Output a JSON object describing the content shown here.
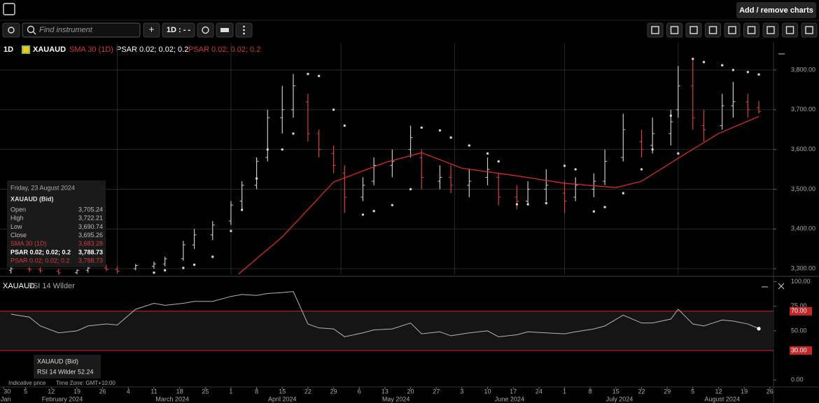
{
  "toolbar": {
    "search_placeholder": "Find instrument",
    "interval": "1D : - -",
    "add_remove": "Add / remove charts"
  },
  "legend": {
    "interval": "1D",
    "symbol": "XAUAUD",
    "psar_red": "PSAR 0.02; 0.02; 0.2"
  },
  "chart_data": [
    {
      "type": "ohlc",
      "x": [
        "2024-02-01",
        "2024-02-06",
        "2024-02-09",
        "2024-02-14",
        "2024-02-19",
        "2024-02-22",
        "2024-02-27",
        "2024-03-01",
        "2024-03-06",
        "2024-03-11",
        "2024-03-14",
        "2024-03-19",
        "2024-03-22",
        "2024-03-27",
        "2024-04-01",
        "2024-04-04",
        "2024-04-08",
        "2024-04-11",
        "2024-04-15",
        "2024-04-18",
        "2024-04-22",
        "2024-04-25",
        "2024-04-29",
        "2024-05-02",
        "2024-05-07",
        "2024-05-10",
        "2024-05-15",
        "2024-05-20",
        "2024-05-23",
        "2024-05-28",
        "2024-05-31",
        "2024-06-05",
        "2024-06-10",
        "2024-06-13",
        "2024-06-18",
        "2024-06-21",
        "2024-06-26",
        "2024-07-01",
        "2024-07-04",
        "2024-07-09",
        "2024-07-12",
        "2024-07-17",
        "2024-07-22",
        "2024-07-25",
        "2024-07-30",
        "2024-08-01",
        "2024-08-05",
        "2024-08-08",
        "2024-08-13",
        "2024-08-16",
        "2024-08-20",
        "2024-08-23"
      ],
      "open": [
        3296,
        3300,
        3298,
        3294,
        3290,
        3296,
        3302,
        3298,
        3300,
        3306,
        3312,
        3325,
        3360,
        3385,
        3420,
        3470,
        3510,
        3580,
        3680,
        3700,
        3720,
        3640,
        3590,
        3540,
        3480,
        3520,
        3560,
        3600,
        3580,
        3520,
        3530,
        3510,
        3530,
        3530,
        3480,
        3470,
        3500,
        3490,
        3480,
        3500,
        3520,
        3580,
        3620,
        3610,
        3640,
        3700,
        3760,
        3660,
        3660,
        3710,
        3720,
        3705.24
      ],
      "high": [
        3305,
        3308,
        3304,
        3300,
        3298,
        3306,
        3310,
        3306,
        3312,
        3318,
        3330,
        3370,
        3400,
        3420,
        3470,
        3520,
        3580,
        3700,
        3760,
        3790,
        3740,
        3650,
        3610,
        3560,
        3530,
        3580,
        3600,
        3660,
        3600,
        3560,
        3560,
        3550,
        3580,
        3540,
        3510,
        3520,
        3550,
        3520,
        3530,
        3540,
        3600,
        3690,
        3650,
        3680,
        3700,
        3810,
        3830,
        3700,
        3740,
        3770,
        3740,
        3722.21
      ],
      "low": [
        3288,
        3292,
        3290,
        3284,
        3286,
        3290,
        3294,
        3288,
        3296,
        3300,
        3306,
        3320,
        3350,
        3372,
        3410,
        3450,
        3500,
        3570,
        3640,
        3680,
        3620,
        3580,
        3540,
        3440,
        3470,
        3510,
        3530,
        3580,
        3500,
        3500,
        3490,
        3480,
        3510,
        3460,
        3450,
        3460,
        3470,
        3440,
        3470,
        3480,
        3510,
        3570,
        3580,
        3590,
        3610,
        3680,
        3650,
        3620,
        3650,
        3680,
        3680,
        3690.74
      ],
      "close": [
        3300,
        3298,
        3295,
        3290,
        3296,
        3302,
        3298,
        3294,
        3308,
        3312,
        3325,
        3360,
        3385,
        3410,
        3460,
        3510,
        3570,
        3680,
        3700,
        3760,
        3640,
        3600,
        3560,
        3480,
        3510,
        3560,
        3570,
        3630,
        3530,
        3530,
        3510,
        3520,
        3550,
        3480,
        3470,
        3500,
        3510,
        3470,
        3510,
        3520,
        3570,
        3650,
        3600,
        3640,
        3670,
        3760,
        3680,
        3650,
        3710,
        3720,
        3700,
        3695.26
      ],
      "up_color": "#c8c8c8",
      "down_color": "#d9413c",
      "overlays": [
        {
          "name": "SMA 30 (1D)",
          "type": "line",
          "color": "#d42a2a",
          "x": [
            "2024-04-03",
            "2024-04-15",
            "2024-04-29",
            "2024-05-13",
            "2024-05-23",
            "2024-06-03",
            "2024-06-17",
            "2024-07-01",
            "2024-07-15",
            "2024-07-22",
            "2024-08-01",
            "2024-08-12",
            "2024-08-23"
          ],
          "values": [
            3286,
            3380,
            3518,
            3567,
            3592,
            3553,
            3535,
            3515,
            3504,
            3520,
            3578,
            3640,
            3683.28
          ]
        },
        {
          "name": "PSAR 0.02; 0.02; 0.2",
          "type": "dots",
          "color": "#e9c9c9",
          "values": [
            null,
            null,
            null,
            null,
            null,
            null,
            null,
            null,
            null,
            3290,
            3296,
            3302,
            3310,
            3330,
            3395,
            3448,
            3527,
            3600,
            3600,
            3640,
            3790,
            3785,
            3700,
            3660,
            3436,
            3445,
            3460,
            3500,
            3655,
            3648,
            3630,
            3610,
            3590,
            3570,
            3462,
            3462,
            3465,
            3559,
            3550,
            3444,
            3455,
            3490,
            3550,
            3600,
            3685,
            3590,
            3828,
            3820,
            3812,
            3800,
            3795,
            3788.73
          ]
        }
      ],
      "xlim": [
        "2024-01-29",
        "2024-08-27"
      ],
      "ylim": [
        3286,
        3867
      ],
      "yticks": [
        {
          "value": 3300,
          "label": "3,300.00"
        },
        {
          "value": 3400,
          "label": "3,400.00"
        },
        {
          "value": 3500,
          "label": "3,500.00"
        },
        {
          "value": 3600,
          "label": "3,600.00"
        },
        {
          "value": 3700,
          "label": "3,700.00"
        },
        {
          "value": 3800,
          "label": "3,800.00"
        }
      ],
      "xgrid": [
        "2024-03-01",
        "2024-04-01",
        "2024-05-01",
        "2024-06-01",
        "2024-07-01",
        "2024-08-01"
      ],
      "grid": true
    },
    {
      "type": "line",
      "symbol": "XAUAUD",
      "title": "RSI 14 Wilder",
      "color": "#b4b4b4",
      "x": [
        "2024-02-01",
        "2024-02-06",
        "2024-02-09",
        "2024-02-14",
        "2024-02-19",
        "2024-02-22",
        "2024-02-27",
        "2024-03-01",
        "2024-03-06",
        "2024-03-11",
        "2024-03-14",
        "2024-03-19",
        "2024-03-22",
        "2024-03-27",
        "2024-04-01",
        "2024-04-04",
        "2024-04-08",
        "2024-04-11",
        "2024-04-15",
        "2024-04-18",
        "2024-04-22",
        "2024-04-25",
        "2024-04-29",
        "2024-05-02",
        "2024-05-07",
        "2024-05-10",
        "2024-05-15",
        "2024-05-20",
        "2024-05-23",
        "2024-05-28",
        "2024-05-31",
        "2024-06-05",
        "2024-06-10",
        "2024-06-13",
        "2024-06-18",
        "2024-06-21",
        "2024-06-26",
        "2024-07-01",
        "2024-07-04",
        "2024-07-09",
        "2024-07-12",
        "2024-07-17",
        "2024-07-22",
        "2024-07-25",
        "2024-07-30",
        "2024-08-01",
        "2024-08-05",
        "2024-08-08",
        "2024-08-13",
        "2024-08-16",
        "2024-08-20",
        "2024-08-23"
      ],
      "values": [
        67,
        64,
        55,
        48,
        50,
        55,
        57,
        56,
        72,
        78,
        76,
        78,
        80,
        80,
        85,
        87,
        86,
        88,
        89,
        90,
        57,
        53,
        52,
        44,
        48,
        51,
        52,
        58,
        47,
        49,
        45,
        48,
        50,
        44,
        46,
        49,
        48,
        47,
        49,
        52,
        55,
        66,
        58,
        58,
        62,
        72,
        57,
        55,
        61,
        60,
        57,
        52.24
      ],
      "xlim": [
        "2024-01-29",
        "2024-08-27"
      ],
      "ylim": [
        -7,
        104
      ],
      "yticks": [
        {
          "value": 0,
          "label": "0.00"
        },
        {
          "value": 50,
          "label": "50.00"
        },
        {
          "value": 75,
          "label": "75.00"
        },
        {
          "value": 100,
          "label": "100.00"
        }
      ],
      "levels": [
        {
          "value": 70,
          "label": "70.00"
        },
        {
          "value": 30,
          "label": "30.00"
        }
      ],
      "level_color": "#c62828",
      "xticks": [
        {
          "value": "2024-01-30",
          "label": "30"
        },
        {
          "value": "2024-02-05",
          "label": "5"
        },
        {
          "value": "2024-02-12",
          "label": "12"
        },
        {
          "value": "2024-02-19",
          "label": "19"
        },
        {
          "value": "2024-02-26",
          "label": "26"
        },
        {
          "value": "2024-03-04",
          "label": "4"
        },
        {
          "value": "2024-03-11",
          "label": "11"
        },
        {
          "value": "2024-03-18",
          "label": "18"
        },
        {
          "value": "2024-03-25",
          "label": "25"
        },
        {
          "value": "2024-04-01",
          "label": "1"
        },
        {
          "value": "2024-04-08",
          "label": "8"
        },
        {
          "value": "2024-04-15",
          "label": "15"
        },
        {
          "value": "2024-04-22",
          "label": "22"
        },
        {
          "value": "2024-04-29",
          "label": "29"
        },
        {
          "value": "2024-05-06",
          "label": "6"
        },
        {
          "value": "2024-05-13",
          "label": "13"
        },
        {
          "value": "2024-05-20",
          "label": "20"
        },
        {
          "value": "2024-05-27",
          "label": "27"
        },
        {
          "value": "2024-06-03",
          "label": "3"
        },
        {
          "value": "2024-06-10",
          "label": "10"
        },
        {
          "value": "2024-06-17",
          "label": "17"
        },
        {
          "value": "2024-06-24",
          "label": "24"
        },
        {
          "value": "2024-07-01",
          "label": "1"
        },
        {
          "value": "2024-07-08",
          "label": "8"
        },
        {
          "value": "2024-07-15",
          "label": "15"
        },
        {
          "value": "2024-07-22",
          "label": "22"
        },
        {
          "value": "2024-07-29",
          "label": "29"
        },
        {
          "value": "2024-08-05",
          "label": "5"
        },
        {
          "value": "2024-08-12",
          "label": "12"
        },
        {
          "value": "2024-08-19",
          "label": "19"
        },
        {
          "value": "2024-08-26",
          "label": "26"
        }
      ],
      "month_labels": [
        {
          "value": "2024-01-29",
          "label": "Jan"
        },
        {
          "value": "2024-02-15",
          "label": "February 2024"
        },
        {
          "value": "2024-03-16",
          "label": "March 2024"
        },
        {
          "value": "2024-04-15",
          "label": "April 2024"
        },
        {
          "value": "2024-05-16",
          "label": "May 2024"
        },
        {
          "value": "2024-06-16",
          "label": "June 2024"
        },
        {
          "value": "2024-07-16",
          "label": "July 2024"
        },
        {
          "value": "2024-08-13",
          "label": "August 2024"
        }
      ]
    }
  ],
  "tooltip": {
    "date": "Friday, 23 August 2024",
    "instrument": "XAUAUD (Bid)",
    "rows": [
      [
        "Open",
        "3,705.24"
      ],
      [
        "High",
        "3,722.21"
      ],
      [
        "Low",
        "3,690.74"
      ],
      [
        "Close",
        "3,695.26"
      ],
      [
        "SMA 30 (1D)",
        "3,683.28"
      ],
      [
        "PSAR 0.02; 0.02; 0.2",
        "3,788.73"
      ],
      [
        "PSAR 0.02; 0.02; 0.2",
        "3,788.73"
      ]
    ]
  },
  "rsi_tooltip": {
    "instrument": "XAUAUD (Bid)",
    "value": "RSI 14 Wilder 52.24"
  },
  "footer": {
    "indicative": "Indicative price",
    "timezone": "Time Zone: GMT+10:00"
  }
}
